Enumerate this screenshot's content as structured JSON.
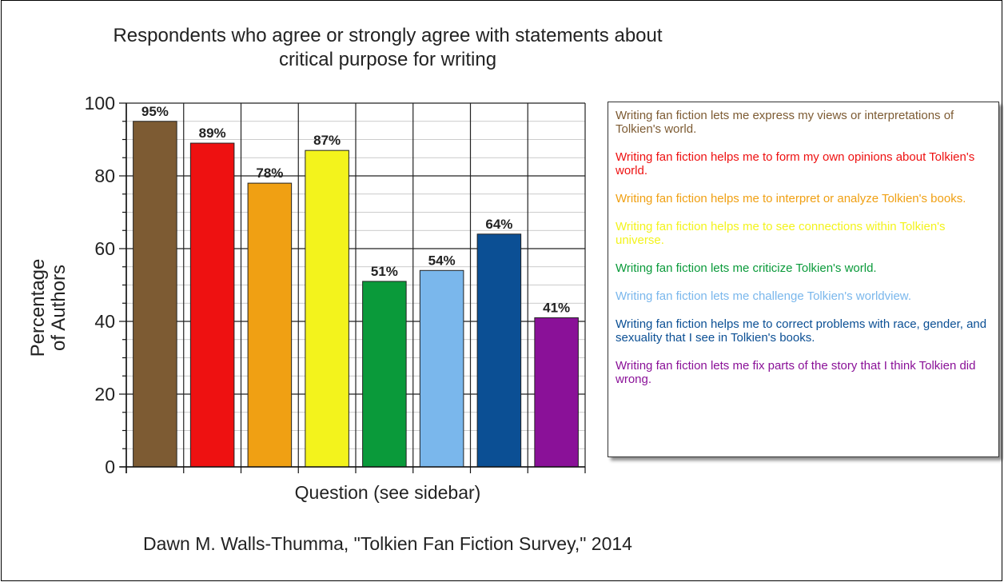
{
  "chart_data": {
    "type": "bar",
    "title": "Respondents who agree or strongly agree with statements about critical purpose for writing",
    "ylabel": "Percentage\nof Authors",
    "xlabel": "Question (see sidebar)",
    "ylim": [
      0,
      100
    ],
    "yticks": [
      0,
      20,
      40,
      60,
      80,
      100
    ],
    "grid": true,
    "legend_position": "right",
    "values": [
      95,
      89,
      78,
      87,
      51,
      54,
      64,
      41
    ],
    "value_labels": [
      "95%",
      "89%",
      "78%",
      "87%",
      "51%",
      "54%",
      "64%",
      "41%"
    ],
    "colors": [
      "#7d5b33",
      "#ee1111",
      "#f0a013",
      "#f3f31c",
      "#0a9a3a",
      "#7ab7ec",
      "#0b4f94",
      "#8a1198"
    ],
    "legend": [
      "Writing fan fiction lets me express my views or interpretations of Tolkien's world.",
      "Writing fan fiction helps me to form my own opinions about Tolkien's world.",
      "Writing fan fiction helps me to interpret or analyze Tolkien's books.",
      "Writing fan fiction helps me to see connections within Tolkien's universe.",
      "Writing fan fiction lets me criticize Tolkien's world.",
      "Writing fan fiction lets me challenge Tolkien's worldview.",
      "Writing fan fiction helps me to correct problems with race, gender, and sexuality that I see in Tolkien's books.",
      "Writing fan fiction lets me fix parts of the story that I think Tolkien did wrong."
    ]
  },
  "credit": "Dawn M. Walls-Thumma, \"Tolkien Fan Fiction Survey,\" 2014"
}
